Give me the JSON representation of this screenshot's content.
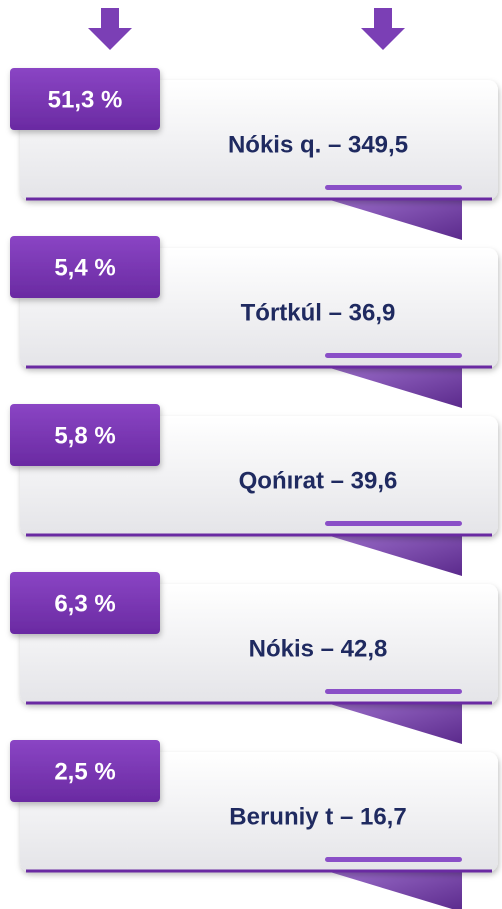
{
  "items": [
    {
      "percent": "51,3 %",
      "label": "Nókis q. – 349,5"
    },
    {
      "percent": "5,4 %",
      "label": "Tórtkúl – 36,9"
    },
    {
      "percent": "5,8 %",
      "label": "Qońırat – 39,6"
    },
    {
      "percent": "6,3 %",
      "label": "Nókis – 42,8"
    },
    {
      "percent": "2,5 %",
      "label": "Beruniy t – 16,7"
    }
  ]
}
